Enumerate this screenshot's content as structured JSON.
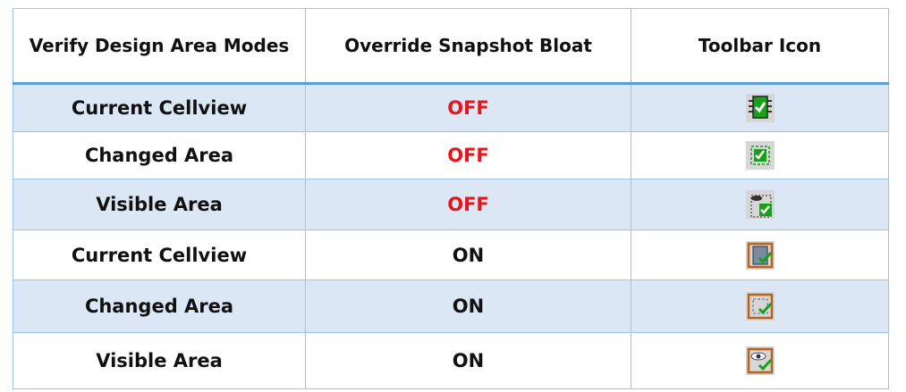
{
  "table": {
    "headers": [
      "Verify Design Area Modes",
      "Override Snapshot Bloat",
      "Toolbar Icon"
    ],
    "rows": [
      {
        "mode": "Current Cellview",
        "bloat": "OFF",
        "icon": "chip-check-icon"
      },
      {
        "mode": "Changed Area",
        "bloat": "OFF",
        "icon": "changed-area-check-icon"
      },
      {
        "mode": "Visible Area",
        "bloat": "OFF",
        "icon": "eye-area-check-icon"
      },
      {
        "mode": "Current Cellview",
        "bloat": "ON",
        "icon": "chip-check-bloat-icon"
      },
      {
        "mode": "Changed Area",
        "bloat": "ON",
        "icon": "changed-area-check-bloat-icon"
      },
      {
        "mode": "Visible Area",
        "bloat": "ON",
        "icon": "eye-area-check-bloat-icon"
      }
    ]
  },
  "colors": {
    "off": "#e8141a",
    "row_shade": "#dbe7f4",
    "border": "#5b9bd5"
  }
}
